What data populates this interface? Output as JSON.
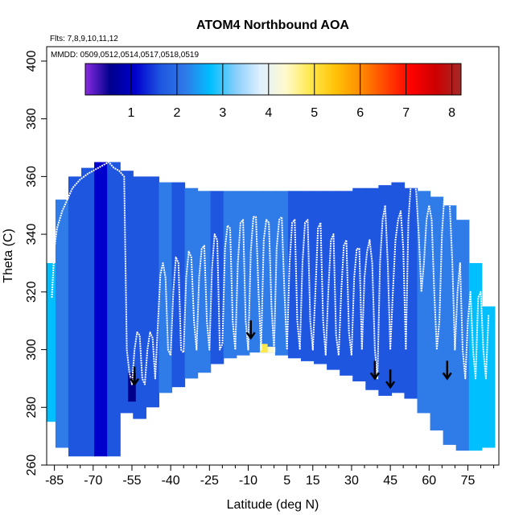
{
  "chart_data": {
    "type": "heatmap",
    "title": "ATOM4 Northbound AOA",
    "annotation_flights": "Flts: 7,8,9,10,11,12",
    "annotation_dates": "MMDD: 0509,0512,0514,0517,0518,0519",
    "xlabel": "Latitude (deg N)",
    "ylabel": "Theta (C)",
    "xlim": [
      -88,
      87
    ],
    "ylim": [
      260,
      405
    ],
    "x_ticks": [
      -85,
      -70,
      -55,
      -40,
      -25,
      -10,
      5,
      15,
      30,
      45,
      60,
      75
    ],
    "y_ticks": [
      260,
      280,
      300,
      320,
      340,
      360,
      380,
      400
    ],
    "colorbar": {
      "label_ticks": [
        1,
        2,
        3,
        4,
        5,
        6,
        7,
        8
      ],
      "range": [
        0,
        8.2
      ],
      "colors": [
        "#8a2be2",
        "#00008b",
        "#0000cd",
        "#1e56e0",
        "#2f7be8",
        "#00bfff",
        "#87cefa",
        "#e0f0ff",
        "#fffacd",
        "#ffe84a",
        "#ffc107",
        "#ff8c00",
        "#ff4500",
        "#ff0000",
        "#cc0000",
        "#a52a2a"
      ]
    },
    "columns": [
      {
        "lat": -87,
        "theta_min": 275,
        "theta_max": 330,
        "value": 2.8
      },
      {
        "lat": -82,
        "theta_min": 266,
        "theta_max": 352,
        "value": 2.2
      },
      {
        "lat": -77,
        "theta_min": 263,
        "theta_max": 360,
        "value": 1.8
      },
      {
        "lat": -72,
        "theta_min": 263,
        "theta_max": 363,
        "value": 1.6
      },
      {
        "lat": -67,
        "theta_min": 263,
        "theta_max": 365,
        "value": 1.5
      },
      {
        "lat": -62,
        "theta_min": 263,
        "theta_max": 365,
        "value": 1.7
      },
      {
        "lat": -57,
        "theta_min": 278,
        "theta_max": 362,
        "value": 1.6
      },
      {
        "lat": -52,
        "theta_min": 276,
        "theta_max": 360,
        "value": 1.8
      },
      {
        "lat": -47,
        "theta_min": 280,
        "theta_max": 360,
        "value": 2.0
      },
      {
        "lat": -42,
        "theta_min": 285,
        "theta_max": 358,
        "value": 2.1
      },
      {
        "lat": -37,
        "theta_min": 287,
        "theta_max": 358,
        "value": 2.0
      },
      {
        "lat": -32,
        "theta_min": 290,
        "theta_max": 356,
        "value": 2.2
      },
      {
        "lat": -27,
        "theta_min": 292,
        "theta_max": 355,
        "value": 2.1
      },
      {
        "lat": -22,
        "theta_min": 295,
        "theta_max": 355,
        "value": 2.0
      },
      {
        "lat": -17,
        "theta_min": 297,
        "theta_max": 355,
        "value": 2.2
      },
      {
        "lat": -12,
        "theta_min": 298,
        "theta_max": 355,
        "value": 2.3
      },
      {
        "lat": -7,
        "theta_min": 299,
        "theta_max": 355,
        "value": 2.5
      },
      {
        "lat": -2,
        "theta_min": 299,
        "theta_max": 355,
        "value": 2.4
      },
      {
        "lat": 3,
        "theta_min": 298,
        "theta_max": 355,
        "value": 2.2
      },
      {
        "lat": 8,
        "theta_min": 297,
        "theta_max": 355,
        "value": 2.0
      },
      {
        "lat": 13,
        "theta_min": 296,
        "theta_max": 355,
        "value": 1.9
      },
      {
        "lat": 18,
        "theta_min": 295,
        "theta_max": 355,
        "value": 1.7
      },
      {
        "lat": 23,
        "theta_min": 293,
        "theta_max": 355,
        "value": 1.8
      },
      {
        "lat": 28,
        "theta_min": 291,
        "theta_max": 355,
        "value": 1.9
      },
      {
        "lat": 33,
        "theta_min": 289,
        "theta_max": 356,
        "value": 1.8
      },
      {
        "lat": 38,
        "theta_min": 286,
        "theta_max": 356,
        "value": 1.7
      },
      {
        "lat": 43,
        "theta_min": 284,
        "theta_max": 357,
        "value": 1.6
      },
      {
        "lat": 48,
        "theta_min": 285,
        "theta_max": 358,
        "value": 1.8
      },
      {
        "lat": 53,
        "theta_min": 283,
        "theta_max": 356,
        "value": 1.9
      },
      {
        "lat": 58,
        "theta_min": 278,
        "theta_max": 355,
        "value": 2.1
      },
      {
        "lat": 63,
        "theta_min": 272,
        "theta_max": 353,
        "value": 2.3
      },
      {
        "lat": 68,
        "theta_min": 267,
        "theta_max": 350,
        "value": 2.5
      },
      {
        "lat": 73,
        "theta_min": 265,
        "theta_max": 345,
        "value": 2.4
      },
      {
        "lat": 78,
        "theta_min": 265,
        "theta_max": 330,
        "value": 2.6
      },
      {
        "lat": 83,
        "theta_min": 266,
        "theta_max": 315,
        "value": 2.8
      }
    ],
    "hot_spots": [
      {
        "lat": -4,
        "theta_min": 299,
        "theta_max": 302,
        "value": 4.8
      },
      {
        "lat": -1,
        "theta_min": 299,
        "theta_max": 301,
        "value": 4.6
      },
      {
        "lat": -55,
        "theta_min": 282,
        "theta_max": 292,
        "value": 0.7
      }
    ],
    "flight_track": [
      [
        -86,
        318
      ],
      [
        -85,
        335
      ],
      [
        -84,
        342
      ],
      [
        -82,
        348
      ],
      [
        -80,
        352
      ],
      [
        -78,
        356
      ],
      [
        -75,
        359
      ],
      [
        -72,
        361
      ],
      [
        -70,
        362
      ],
      [
        -68,
        363
      ],
      [
        -66,
        364
      ],
      [
        -64,
        365
      ],
      [
        -62,
        363
      ],
      [
        -60,
        362
      ],
      [
        -58,
        360
      ],
      [
        -57,
        300
      ],
      [
        -56,
        292
      ],
      [
        -55,
        288
      ],
      [
        -54,
        300
      ],
      [
        -53,
        306
      ],
      [
        -52,
        305
      ],
      [
        -51,
        290
      ],
      [
        -50,
        288
      ],
      [
        -49,
        300
      ],
      [
        -48,
        306
      ],
      [
        -47,
        304
      ],
      [
        -46,
        290
      ],
      [
        -45,
        308
      ],
      [
        -44,
        326
      ],
      [
        -43,
        330
      ],
      [
        -42,
        325
      ],
      [
        -41,
        300
      ],
      [
        -40,
        298
      ],
      [
        -39,
        320
      ],
      [
        -38,
        332
      ],
      [
        -37,
        330
      ],
      [
        -36,
        300
      ],
      [
        -35,
        299
      ],
      [
        -34,
        325
      ],
      [
        -33,
        334
      ],
      [
        -32,
        332
      ],
      [
        -31,
        310
      ],
      [
        -30,
        300
      ],
      [
        -29,
        325
      ],
      [
        -28,
        335
      ],
      [
        -27,
        336
      ],
      [
        -26,
        310
      ],
      [
        -25,
        300
      ],
      [
        -24,
        328
      ],
      [
        -23,
        340
      ],
      [
        -22,
        338
      ],
      [
        -21,
        300
      ],
      [
        -20,
        302
      ],
      [
        -19,
        335
      ],
      [
        -18,
        343
      ],
      [
        -17,
        342
      ],
      [
        -16,
        310
      ],
      [
        -15,
        300
      ],
      [
        -14,
        330
      ],
      [
        -13,
        344
      ],
      [
        -12,
        345
      ],
      [
        -11,
        310
      ],
      [
        -10,
        300
      ],
      [
        -9,
        334
      ],
      [
        -8,
        346
      ],
      [
        -7,
        346
      ],
      [
        -6,
        320
      ],
      [
        -5,
        300
      ],
      [
        -4,
        338
      ],
      [
        -3,
        345
      ],
      [
        -2,
        344
      ],
      [
        -1,
        315
      ],
      [
        0,
        300
      ],
      [
        1,
        335
      ],
      [
        2,
        345
      ],
      [
        3,
        346
      ],
      [
        4,
        320
      ],
      [
        5,
        300
      ],
      [
        6,
        330
      ],
      [
        7,
        344
      ],
      [
        8,
        345
      ],
      [
        9,
        310
      ],
      [
        10,
        300
      ],
      [
        11,
        330
      ],
      [
        12,
        344
      ],
      [
        13,
        345
      ],
      [
        14,
        310
      ],
      [
        15,
        300
      ],
      [
        16,
        320
      ],
      [
        17,
        342
      ],
      [
        18,
        344
      ],
      [
        19,
        310
      ],
      [
        20,
        298
      ],
      [
        21,
        320
      ],
      [
        22,
        338
      ],
      [
        23,
        340
      ],
      [
        24,
        305
      ],
      [
        25,
        298
      ],
      [
        26,
        320
      ],
      [
        27,
        336
      ],
      [
        28,
        338
      ],
      [
        29,
        306
      ],
      [
        30,
        298
      ],
      [
        31,
        325
      ],
      [
        32,
        335
      ],
      [
        33,
        335
      ],
      [
        34,
        300
      ],
      [
        35,
        325
      ],
      [
        36,
        334
      ],
      [
        37,
        338
      ],
      [
        38,
        330
      ],
      [
        39,
        300
      ],
      [
        40,
        290
      ],
      [
        41,
        330
      ],
      [
        42,
        345
      ],
      [
        43,
        350
      ],
      [
        44,
        330
      ],
      [
        45,
        300
      ],
      [
        46,
        320
      ],
      [
        47,
        338
      ],
      [
        48,
        345
      ],
      [
        49,
        348
      ],
      [
        50,
        335
      ],
      [
        51,
        300
      ],
      [
        52,
        345
      ],
      [
        53,
        358
      ],
      [
        54,
        360
      ],
      [
        55,
        355
      ],
      [
        56,
        340
      ],
      [
        57,
        320
      ],
      [
        58,
        330
      ],
      [
        59,
        345
      ],
      [
        60,
        350
      ],
      [
        61,
        345
      ],
      [
        62,
        320
      ],
      [
        63,
        300
      ],
      [
        64,
        310
      ],
      [
        65,
        340
      ],
      [
        66,
        355
      ],
      [
        67,
        355
      ],
      [
        68,
        350
      ],
      [
        69,
        330
      ],
      [
        70,
        300
      ],
      [
        71,
        320
      ],
      [
        72,
        330
      ],
      [
        73,
        300
      ],
      [
        74,
        290
      ],
      [
        75,
        310
      ],
      [
        76,
        320
      ],
      [
        77,
        300
      ],
      [
        78,
        290
      ],
      [
        79,
        318
      ],
      [
        80,
        320
      ],
      [
        81,
        300
      ],
      [
        82,
        290
      ],
      [
        83,
        312
      ]
    ],
    "arrows": [
      {
        "lat": -54,
        "theta": 288
      },
      {
        "lat": -9,
        "theta": 304
      },
      {
        "lat": 39,
        "theta": 290
      },
      {
        "lat": 45,
        "theta": 287
      },
      {
        "lat": 67,
        "theta": 290
      }
    ]
  }
}
